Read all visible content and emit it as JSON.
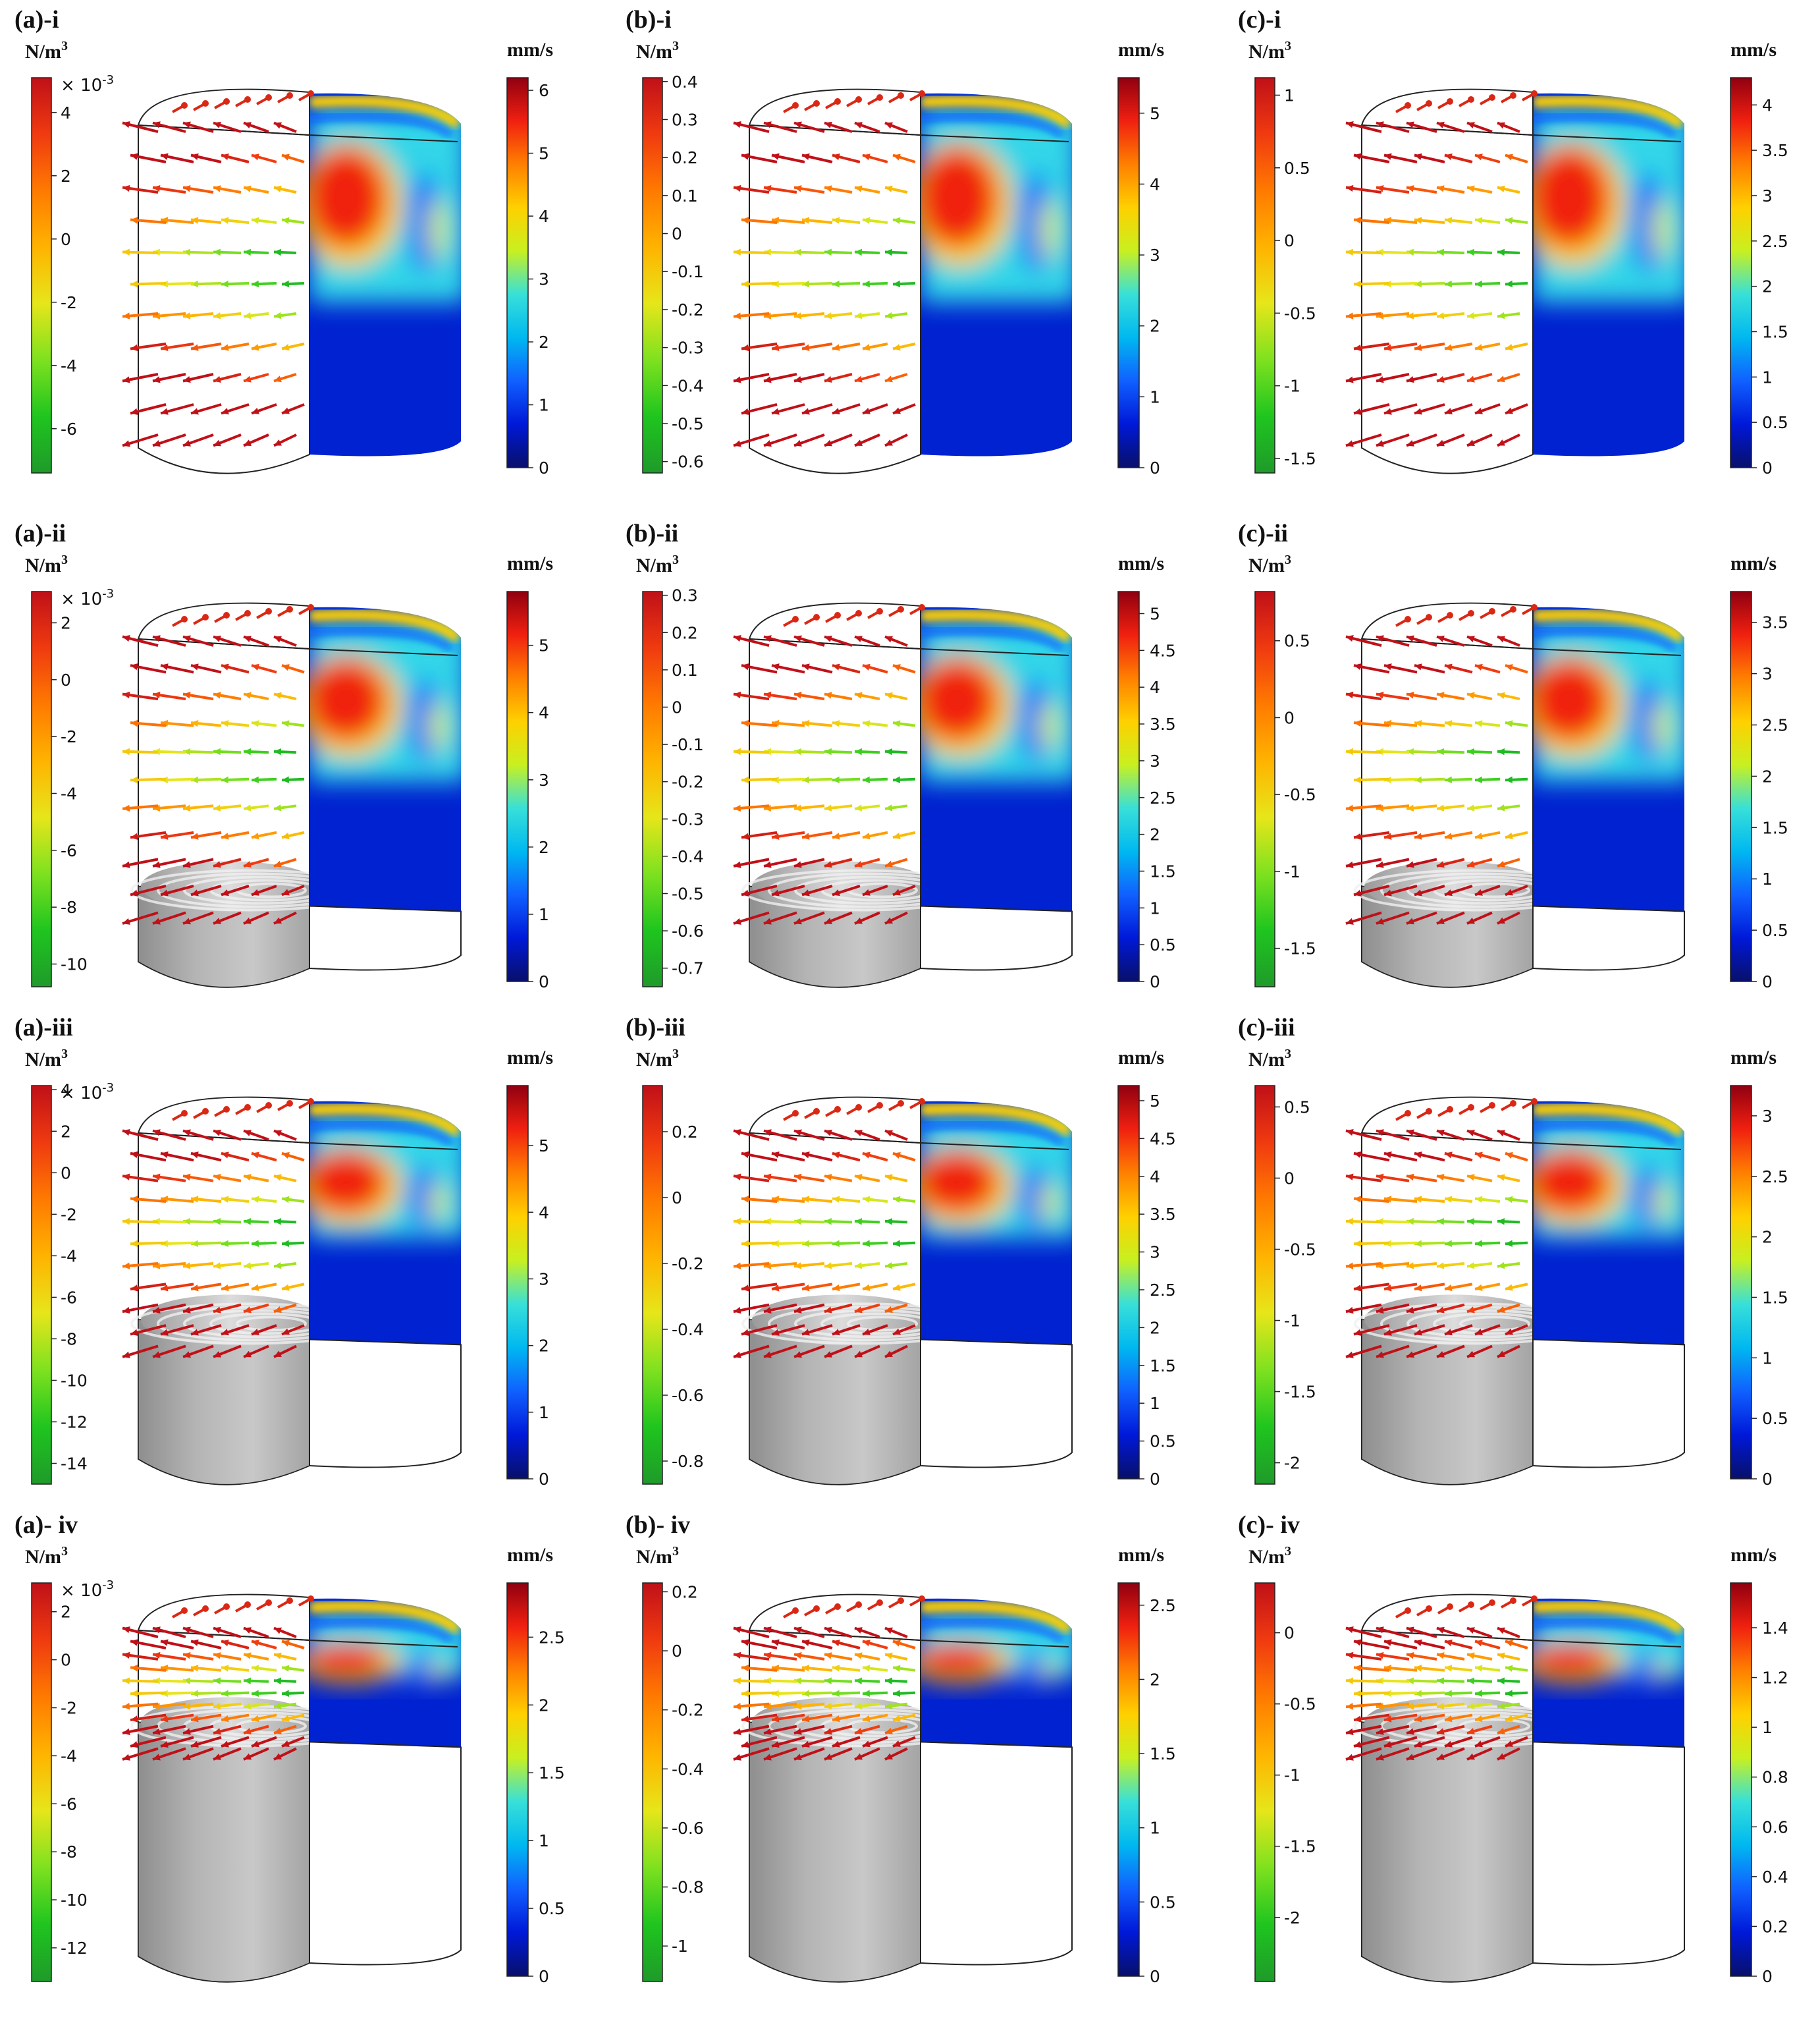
{
  "colors": {
    "force_colormap": [
      "#1f9a2a",
      "#1fc51f",
      "#7ee11f",
      "#e6e61a",
      "#ffb300",
      "#ff7a00",
      "#f03a10",
      "#c01018"
    ],
    "velocity_colormap": [
      "#08106a",
      "#0018d8",
      "#1060ff",
      "#00b8f0",
      "#38e0d8",
      "#c8f020",
      "#ffd000",
      "#ff8000",
      "#f02010",
      "#900010"
    ],
    "solid_gray": "#a9a9a9",
    "outline": "#222222"
  },
  "panels": [
    {
      "id": "a-i",
      "title": "(a)-i",
      "force_unit": "N/m",
      "force_unit_sup": "3",
      "force_multiplier": "× 10",
      "force_multiplier_exp": "-3",
      "force_ticks": [
        "4",
        "2",
        "0",
        "-2",
        "-4",
        "-6"
      ],
      "force_range": [
        -7.4,
        5.1
      ],
      "velocity_unit": "mm/s",
      "velocity_ticks": [
        "6",
        "5",
        "4",
        "3",
        "2",
        "1",
        "0"
      ],
      "velocity_range": [
        0,
        6.2
      ],
      "solidified_fraction": 0
    },
    {
      "id": "b-i",
      "title": "(b)-i",
      "force_unit": "N/m",
      "force_unit_sup": "3",
      "force_multiplier": "",
      "force_multiplier_exp": "",
      "force_ticks": [
        "0.4",
        "0.3",
        "0.2",
        "0.1",
        "0",
        "-0.1",
        "-0.2",
        "-0.3",
        "-0.4",
        "-0.5",
        "-0.6"
      ],
      "force_range": [
        -0.63,
        0.41
      ],
      "velocity_unit": "mm/s",
      "velocity_ticks": [
        "5",
        "4",
        "3",
        "2",
        "1",
        "0"
      ],
      "velocity_range": [
        0,
        5.5
      ],
      "solidified_fraction": 0
    },
    {
      "id": "c-i",
      "title": "(c)-i",
      "force_unit": "N/m",
      "force_unit_sup": "3",
      "force_multiplier": "",
      "force_multiplier_exp": "",
      "force_ticks": [
        "1",
        "0.5",
        "0",
        "-0.5",
        "-1",
        "-1.5"
      ],
      "force_range": [
        -1.6,
        1.12
      ],
      "velocity_unit": "mm/s",
      "velocity_ticks": [
        "4",
        "3.5",
        "3",
        "2.5",
        "2",
        "1.5",
        "1",
        "0.5",
        "0"
      ],
      "velocity_range": [
        0,
        4.3
      ],
      "solidified_fraction": 0
    },
    {
      "id": "a-ii",
      "title": "(a)-ii",
      "force_unit": "N/m",
      "force_unit_sup": "3",
      "force_multiplier": "× 10",
      "force_multiplier_exp": "-3",
      "force_ticks": [
        "2",
        "0",
        "-2",
        "-4",
        "-6",
        "-8",
        "-10"
      ],
      "force_range": [
        -10.8,
        3.1
      ],
      "velocity_unit": "mm/s",
      "velocity_ticks": [
        "5",
        "4",
        "3",
        "2",
        "1",
        "0"
      ],
      "velocity_range": [
        0,
        5.8
      ],
      "solidified_fraction": 0.22
    },
    {
      "id": "b-ii",
      "title": "(b)-ii",
      "force_unit": "N/m",
      "force_unit_sup": "3",
      "force_multiplier": "",
      "force_multiplier_exp": "",
      "force_ticks": [
        "0.3",
        "0.2",
        "0.1",
        "0",
        "-0.1",
        "-0.2",
        "-0.3",
        "-0.4",
        "-0.5",
        "-0.6",
        "-0.7"
      ],
      "force_range": [
        -0.75,
        0.31
      ],
      "velocity_unit": "mm/s",
      "velocity_ticks": [
        "5",
        "4.5",
        "4",
        "3.5",
        "3",
        "2.5",
        "2",
        "1.5",
        "1",
        "0.5",
        "0"
      ],
      "velocity_range": [
        0,
        5.3
      ],
      "solidified_fraction": 0.22
    },
    {
      "id": "c-ii",
      "title": "(c)-ii",
      "force_unit": "N/m",
      "force_unit_sup": "3",
      "force_multiplier": "",
      "force_multiplier_exp": "",
      "force_ticks": [
        "0.5",
        "0",
        "-0.5",
        "-1",
        "-1.5"
      ],
      "force_range": [
        -1.75,
        0.82
      ],
      "velocity_unit": "mm/s",
      "velocity_ticks": [
        "3.5",
        "3",
        "2.5",
        "2",
        "1.5",
        "1",
        "0.5",
        "0"
      ],
      "velocity_range": [
        0,
        3.8
      ],
      "solidified_fraction": 0.22
    },
    {
      "id": "a-iii",
      "title": "(a)-iii",
      "force_unit": "N/m",
      "force_unit_sup": "3",
      "force_multiplier": "× 10",
      "force_multiplier_exp": "-3",
      "force_ticks": [
        "4",
        "2",
        "0",
        "-2",
        "-4",
        "-6",
        "-8",
        "-10",
        "-12",
        "-14"
      ],
      "force_range": [
        -15,
        4.2
      ],
      "velocity_unit": "mm/s",
      "velocity_ticks": [
        "5",
        "4",
        "3",
        "2",
        "1",
        "0"
      ],
      "velocity_range": [
        0,
        5.9
      ],
      "solidified_fraction": 0.42
    },
    {
      "id": "b-iii",
      "title": "(b)-iii",
      "force_unit": "N/m",
      "force_unit_sup": "3",
      "force_multiplier": "",
      "force_multiplier_exp": "",
      "force_ticks": [
        "0.2",
        "0",
        "-0.2",
        "-0.4",
        "-0.6",
        "-0.8"
      ],
      "force_range": [
        -0.87,
        0.34
      ],
      "velocity_unit": "mm/s",
      "velocity_ticks": [
        "5",
        "4.5",
        "4",
        "3.5",
        "3",
        "2.5",
        "2",
        "1.5",
        "1",
        "0.5",
        "0"
      ],
      "velocity_range": [
        0,
        5.2
      ],
      "solidified_fraction": 0.42
    },
    {
      "id": "c-iii",
      "title": "(c)-iii",
      "force_unit": "N/m",
      "force_unit_sup": "3",
      "force_multiplier": "",
      "force_multiplier_exp": "",
      "force_ticks": [
        "0.5",
        "0",
        "-0.5",
        "-1",
        "-1.5",
        "-2"
      ],
      "force_range": [
        -2.15,
        0.65
      ],
      "velocity_unit": "mm/s",
      "velocity_ticks": [
        "3",
        "2.5",
        "2",
        "1.5",
        "1",
        "0.5",
        "0"
      ],
      "velocity_range": [
        0,
        3.25
      ],
      "solidified_fraction": 0.42
    },
    {
      "id": "a-iv",
      "title": "(a)- iv",
      "force_unit": "N/m",
      "force_unit_sup": "3",
      "force_multiplier": "× 10",
      "force_multiplier_exp": "-3",
      "force_ticks": [
        "2",
        "0",
        "-2",
        "-4",
        "-6",
        "-8",
        "-10",
        "-12"
      ],
      "force_range": [
        -13.4,
        3.2
      ],
      "velocity_unit": "mm/s",
      "velocity_ticks": [
        "2.5",
        "2",
        "1.5",
        "1",
        "0.5",
        "0"
      ],
      "velocity_range": [
        0,
        2.9
      ],
      "solidified_fraction": 0.72
    },
    {
      "id": "b-iv",
      "title": "(b)- iv",
      "force_unit": "N/m",
      "force_unit_sup": "3",
      "force_multiplier": "",
      "force_multiplier_exp": "",
      "force_ticks": [
        "0.2",
        "0",
        "-0.2",
        "-0.4",
        "-0.6",
        "-0.8",
        "-1"
      ],
      "force_range": [
        -1.12,
        0.23
      ],
      "velocity_unit": "mm/s",
      "velocity_ticks": [
        "2.5",
        "2",
        "1.5",
        "1",
        "0.5",
        "0"
      ],
      "velocity_range": [
        0,
        2.65
      ],
      "solidified_fraction": 0.72
    },
    {
      "id": "c-iv",
      "title": "(c)- iv",
      "force_unit": "N/m",
      "force_unit_sup": "3",
      "force_multiplier": "",
      "force_multiplier_exp": "",
      "force_ticks": [
        "0",
        "-0.5",
        "-1",
        "-1.5",
        "-2"
      ],
      "force_range": [
        -2.45,
        0.35
      ],
      "velocity_unit": "mm/s",
      "velocity_ticks": [
        "1.4",
        "1.2",
        "1",
        "0.8",
        "0.6",
        "0.4",
        "0.2",
        "0"
      ],
      "velocity_range": [
        0,
        1.58
      ],
      "solidified_fraction": 0.72
    }
  ]
}
